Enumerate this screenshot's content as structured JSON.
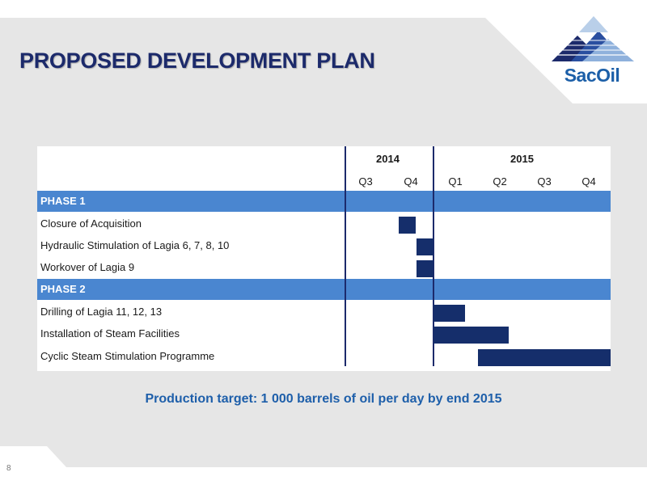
{
  "slide": {
    "title": "PROPOSED DEVELOPMENT PLAN",
    "logo_text": "SacOil",
    "footer_text": "Production target: 1 000 barrels of oil per day by end 2015",
    "page_number": "8"
  },
  "gantt": {
    "years": [
      {
        "label": "2014",
        "quarters": [
          "Q3",
          "Q4"
        ]
      },
      {
        "label": "2015",
        "quarters": [
          "Q1",
          "Q2",
          "Q3",
          "Q4"
        ]
      }
    ],
    "phases": [
      {
        "label": "PHASE 1",
        "tasks": [
          {
            "label": "Closure of Acquisition",
            "start": 1.2,
            "end": 1.6
          },
          {
            "label": "Hydraulic Stimulation of Lagia 6, 7, 8, 10",
            "start": 1.6,
            "end": 2.0
          },
          {
            "label": "Workover of Lagia 9",
            "start": 1.6,
            "end": 2.0
          }
        ]
      },
      {
        "label": "PHASE 2",
        "tasks": [
          {
            "label": "Drilling of Lagia 11, 12, 13",
            "start": 2.0,
            "end": 2.7
          },
          {
            "label": "Installation of Steam Facilities",
            "start": 2.0,
            "end": 3.7
          },
          {
            "label": "Cyclic Steam Stimulation Programme",
            "start": 3.0,
            "end": 6.0
          }
        ]
      }
    ]
  },
  "colors": {
    "title": "#1c2a6b",
    "phase_band": "#4a86d0",
    "bar": "#152e6b",
    "footer_text": "#1e5faa",
    "background_gray": "#e6e6e6"
  }
}
